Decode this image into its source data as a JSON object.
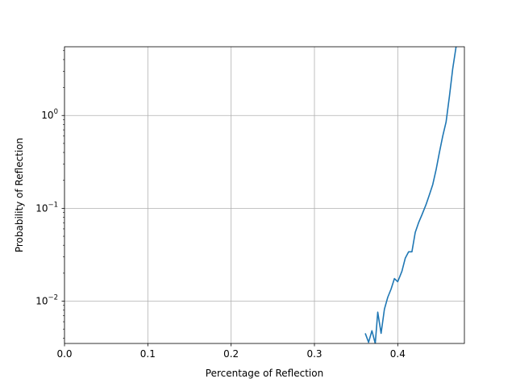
{
  "chart_data": {
    "type": "line",
    "title": "",
    "xlabel": "Percentage of Reflection",
    "ylabel": "Probability of Reflection",
    "xlim": [
      0.0,
      0.48
    ],
    "ylim": [
      0.0035,
      5.5
    ],
    "yscale": "log",
    "grid": true,
    "x_ticks": [
      {
        "value": 0.0,
        "label": "0.0"
      },
      {
        "value": 0.1,
        "label": "0.1"
      },
      {
        "value": 0.2,
        "label": "0.2"
      },
      {
        "value": 0.3,
        "label": "0.3"
      },
      {
        "value": 0.4,
        "label": "0.4"
      }
    ],
    "y_ticks": [
      {
        "value": 0.01,
        "base": "10",
        "exp": "−2"
      },
      {
        "value": 0.1,
        "base": "10",
        "exp": "−1"
      },
      {
        "value": 1,
        "base": "10",
        "exp": "0"
      }
    ],
    "series": [
      {
        "color": "#1f77b4",
        "x": [
          0.361,
          0.365,
          0.369,
          0.373,
          0.376,
          0.38,
          0.384,
          0.388,
          0.392,
          0.396,
          0.4,
          0.405,
          0.409,
          0.413,
          0.417,
          0.421,
          0.425,
          0.429,
          0.434,
          0.438,
          0.442,
          0.446,
          0.45,
          0.454,
          0.458,
          0.462,
          0.466,
          0.47,
          0.474
        ],
        "y": [
          0.0045,
          0.0036,
          0.0048,
          0.0035,
          0.0076,
          0.0045,
          0.0082,
          0.011,
          0.0135,
          0.0175,
          0.0162,
          0.021,
          0.029,
          0.034,
          0.034,
          0.055,
          0.07,
          0.085,
          0.11,
          0.14,
          0.18,
          0.26,
          0.4,
          0.6,
          0.85,
          1.6,
          3.2,
          5.5,
          5.8
        ]
      }
    ]
  }
}
